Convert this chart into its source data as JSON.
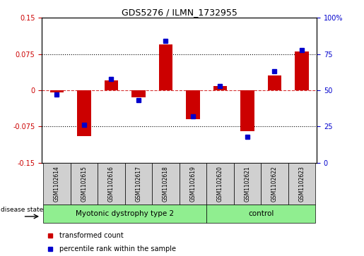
{
  "title": "GDS5276 / ILMN_1732955",
  "samples": [
    "GSM1102614",
    "GSM1102615",
    "GSM1102616",
    "GSM1102617",
    "GSM1102618",
    "GSM1102619",
    "GSM1102620",
    "GSM1102621",
    "GSM1102622",
    "GSM1102623"
  ],
  "red_values": [
    -0.005,
    -0.095,
    0.02,
    -0.015,
    0.095,
    -0.06,
    0.008,
    -0.085,
    0.03,
    0.08
  ],
  "blue_values": [
    47,
    26,
    58,
    43,
    84,
    32,
    53,
    18,
    63,
    78
  ],
  "groups": [
    {
      "label": "Myotonic dystrophy type 2",
      "start": 0,
      "end": 6
    },
    {
      "label": "control",
      "start": 6,
      "end": 10
    }
  ],
  "group_color": "#90EE90",
  "red_color": "#CC0000",
  "blue_color": "#0000CC",
  "ylim_left": [
    -0.15,
    0.15
  ],
  "ylim_right": [
    0,
    100
  ],
  "yticks_left": [
    -0.15,
    -0.075,
    0,
    0.075,
    0.15
  ],
  "yticks_right": [
    0,
    25,
    50,
    75,
    100
  ],
  "ytick_labels_left": [
    "-0.15",
    "-0.075",
    "0",
    "0.075",
    "0.15"
  ],
  "ytick_labels_right": [
    "0",
    "25",
    "50",
    "75",
    "100%"
  ],
  "hlines": [
    -0.075,
    0.075
  ],
  "bar_width": 0.5,
  "label_red": "transformed count",
  "label_blue": "percentile rank within the sample",
  "disease_state_label": "disease state",
  "box_color": "#D0D0D0",
  "sample_fontsize": 5.5,
  "group_fontsize": 7.5,
  "title_fontsize": 9,
  "tick_fontsize": 7,
  "legend_fontsize": 7
}
